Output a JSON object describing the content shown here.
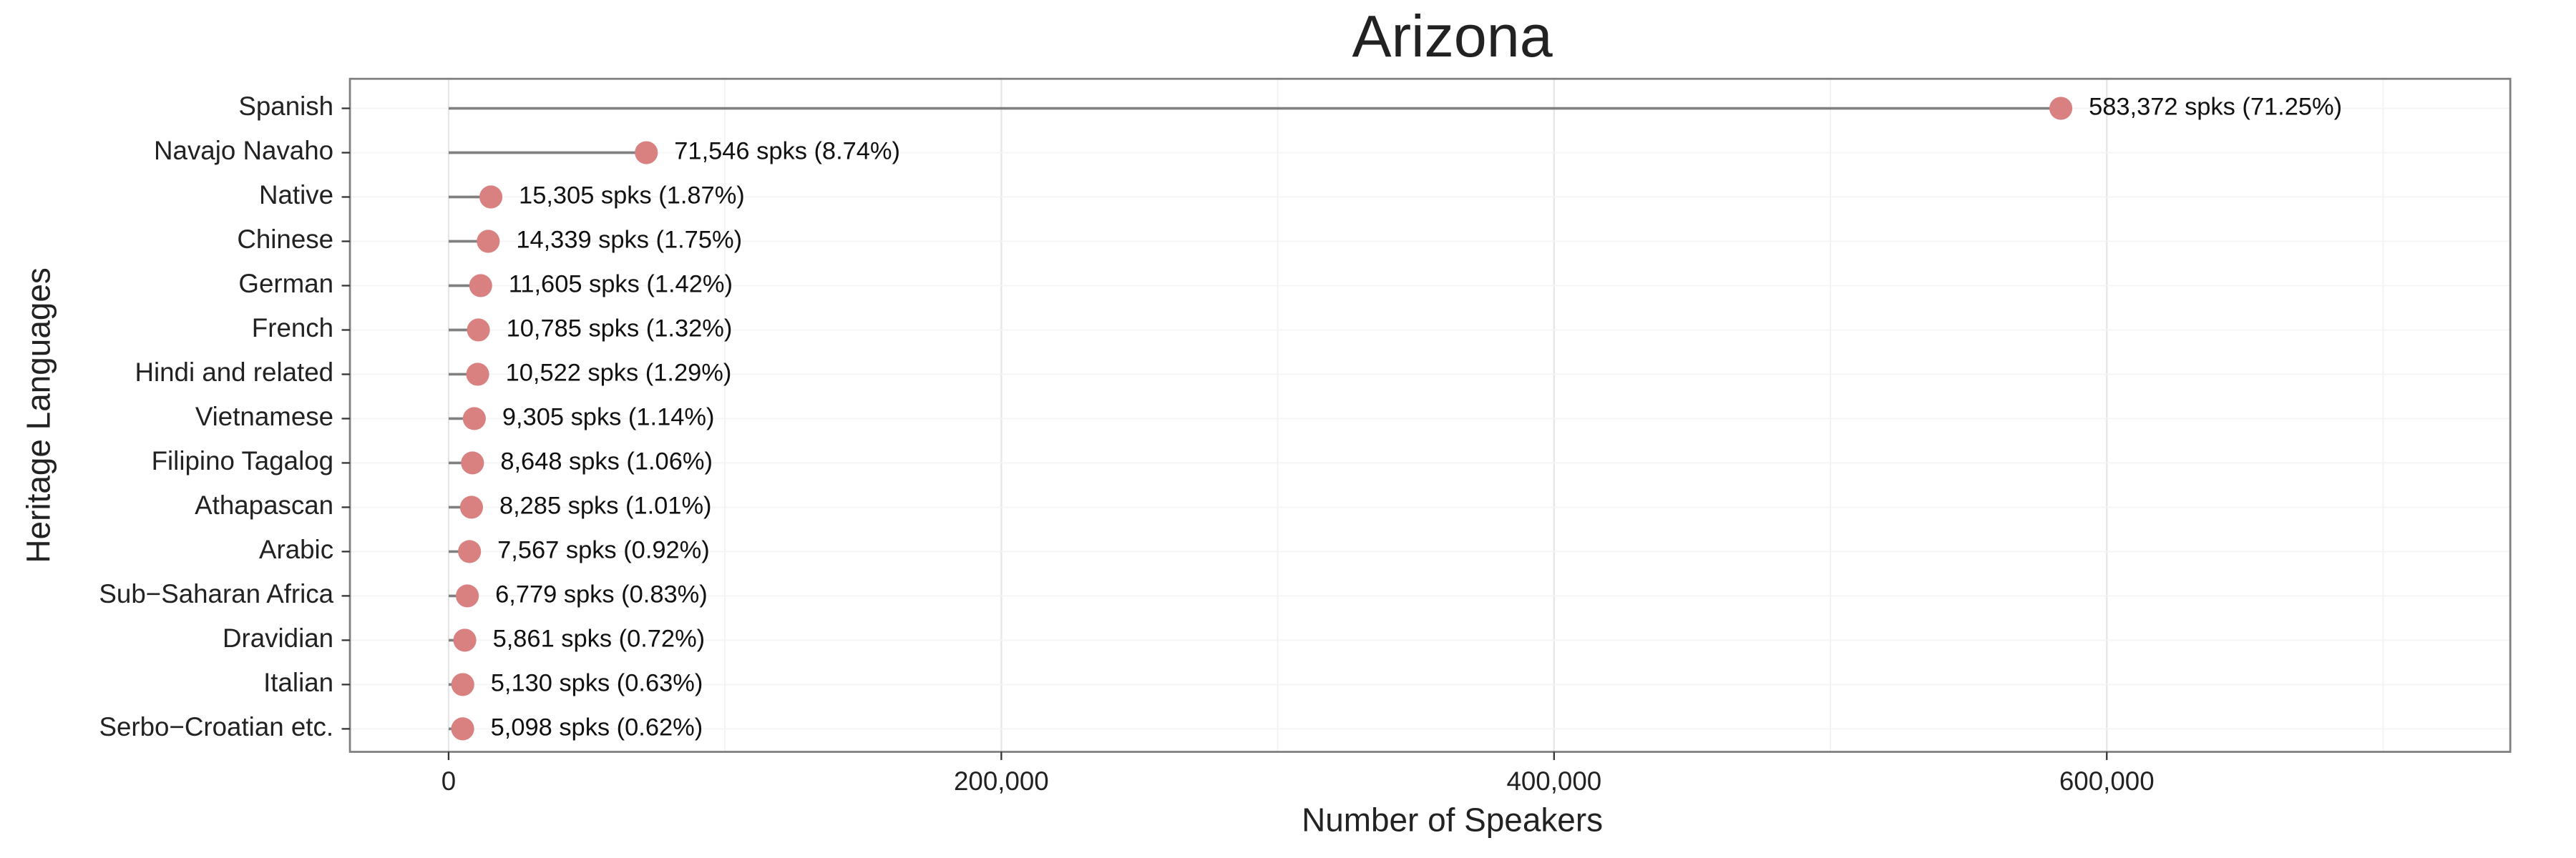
{
  "chart_data": {
    "type": "lollipop",
    "orientation": "horizontal",
    "title": "Arizona",
    "x_label": "Number of Speakers",
    "y_label": "Heritage Languages",
    "categories": [
      "Spanish",
      "Navajo Navaho",
      "Native",
      "Chinese",
      "German",
      "French",
      "Hindi and related",
      "Vietnamese",
      "Filipino Tagalog",
      "Athapascan",
      "Arabic",
      "Sub−Saharan Africa",
      "Dravidian",
      "Italian",
      "Serbo−Croatian etc."
    ],
    "values": [
      583372,
      71546,
      15305,
      14339,
      11605,
      10785,
      10522,
      9305,
      8648,
      8285,
      7567,
      6779,
      5861,
      5130,
      5098
    ],
    "value_labels": [
      "583,372 spks (71.25%)",
      "71,546 spks (8.74%)",
      "15,305 spks (1.87%)",
      "14,339 spks (1.75%)",
      "11,605 spks (1.42%)",
      "10,785 spks (1.32%)",
      "10,522 spks (1.29%)",
      "9,305 spks (1.14%)",
      "8,648 spks (1.06%)",
      "8,285 spks (1.01%)",
      "7,567 spks (0.92%)",
      "6,779 spks (0.83%)",
      "5,861 spks (0.72%)",
      "5,130 spks (0.63%)",
      "5,098 spks (0.62%)"
    ],
    "color": "#d98080",
    "stem_color": "#808080",
    "xlim": [
      -35700,
      746000
    ],
    "xticks": [
      0,
      {
        "value": 200000,
        "label": "200,000"
      },
      {
        "value": 400000,
        "label": "400,000"
      },
      {
        "value": 600000,
        "label": "600,000"
      }
    ],
    "xminor": [
      100000,
      300000,
      500000,
      700000
    ],
    "grid": true
  }
}
